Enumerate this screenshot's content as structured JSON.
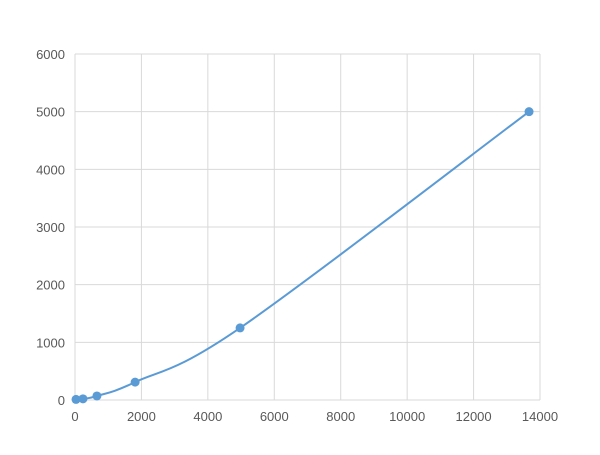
{
  "chart_data": {
    "type": "line",
    "title": "",
    "xlabel": "",
    "ylabel": "",
    "xlim": [
      0,
      14000
    ],
    "ylim": [
      0,
      6000
    ],
    "xticks": [
      0,
      2000,
      4000,
      6000,
      8000,
      10000,
      12000,
      14000
    ],
    "yticks": [
      0,
      1000,
      2000,
      3000,
      4000,
      5000,
      6000
    ],
    "grid": true,
    "legend": "none",
    "series": [
      {
        "color": "#5b9bd5",
        "marker": "circle",
        "smooth": true,
        "x": [
          30,
          240,
          660,
          1810,
          4970,
          13670
        ],
        "y": [
          10,
          20,
          70,
          310,
          1250,
          5000
        ]
      }
    ]
  }
}
